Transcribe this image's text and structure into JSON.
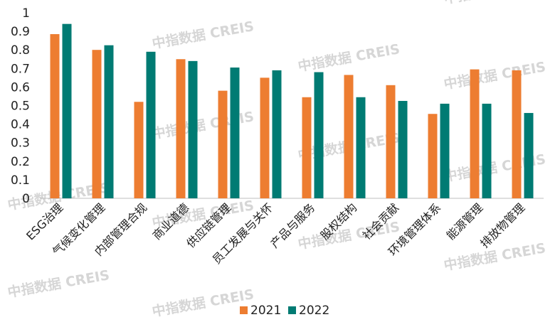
{
  "watermark": "中指数据 CREIS",
  "colors": {
    "s2021": "#ED7D31",
    "s2022": "#007B73"
  },
  "chart_data": {
    "type": "bar",
    "title": "",
    "xlabel": "",
    "ylabel": "",
    "ylim": [
      0,
      1
    ],
    "yticks": [
      "0",
      "0.1",
      "0.2",
      "0.3",
      "0.4",
      "0.5",
      "0.6",
      "0.7",
      "0.8",
      "0.9",
      "1"
    ],
    "grid": false,
    "legend_position": "bottom",
    "categories": [
      "ESG治理",
      "气候变化管理",
      "内部管理合规",
      "商业道德",
      "供应链管理",
      "员工发展与关怀",
      "产品与服务",
      "股权结构",
      "社会贡献",
      "环境管理体系",
      "能源管理",
      "排放物管理"
    ],
    "series": [
      {
        "name": "2021",
        "values": [
          0.885,
          0.8,
          0.52,
          0.75,
          0.58,
          0.65,
          0.545,
          0.665,
          0.61,
          0.455,
          0.695,
          0.69
        ]
      },
      {
        "name": "2022",
        "values": [
          0.94,
          0.825,
          0.79,
          0.74,
          0.705,
          0.69,
          0.68,
          0.545,
          0.525,
          0.51,
          0.51,
          0.46
        ]
      }
    ]
  }
}
